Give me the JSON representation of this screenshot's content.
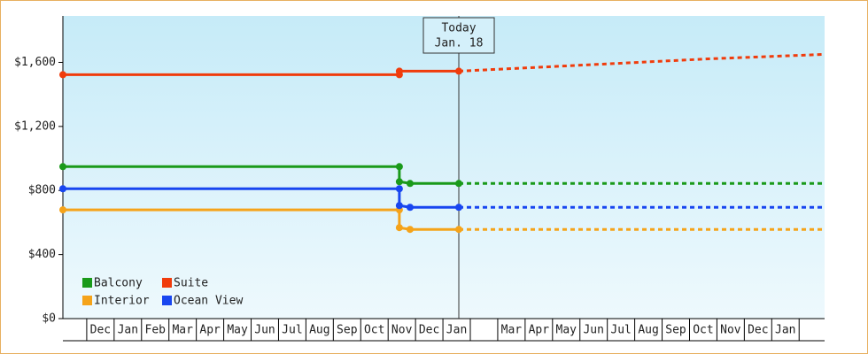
{
  "chart_data": {
    "type": "line",
    "step": true,
    "ylim": [
      0,
      1890
    ],
    "yticks": [
      {
        "value": 0,
        "label": "$0"
      },
      {
        "value": 400,
        "label": "$400"
      },
      {
        "value": 800,
        "label": "$800"
      },
      {
        "value": 1200,
        "label": "$1,200"
      },
      {
        "value": 1600,
        "label": "$1,600"
      }
    ],
    "xlim": [
      -0.87,
      26.93
    ],
    "xticks": [
      {
        "value": 0,
        "label": "Dec"
      },
      {
        "value": 1,
        "label": "Jan"
      },
      {
        "value": 2,
        "label": "Feb"
      },
      {
        "value": 3,
        "label": "Mar"
      },
      {
        "value": 4,
        "label": "Apr"
      },
      {
        "value": 5,
        "label": "May"
      },
      {
        "value": 6,
        "label": "Jun"
      },
      {
        "value": 7,
        "label": "Jul"
      },
      {
        "value": 8,
        "label": "Aug"
      },
      {
        "value": 9,
        "label": "Sep"
      },
      {
        "value": 10,
        "label": "Oct"
      },
      {
        "value": 11,
        "label": "Nov"
      },
      {
        "value": 12,
        "label": "Dec"
      },
      {
        "value": 13,
        "label": "Jan"
      },
      {
        "value": 14,
        "label": null
      },
      {
        "value": 15,
        "label": "Mar"
      },
      {
        "value": 16,
        "label": "Apr"
      },
      {
        "value": 17,
        "label": "May"
      },
      {
        "value": 18,
        "label": "Jun"
      },
      {
        "value": 19,
        "label": "Jul"
      },
      {
        "value": 20,
        "label": "Aug"
      },
      {
        "value": 21,
        "label": "Sep"
      },
      {
        "value": 22,
        "label": "Oct"
      },
      {
        "value": 23,
        "label": "Nov"
      },
      {
        "value": 24,
        "label": "Dec"
      },
      {
        "value": 25,
        "label": "Jan"
      },
      {
        "value": 26,
        "label": null
      }
    ],
    "today": {
      "x": 13.58,
      "label": [
        "Today",
        "Jan. 18"
      ]
    },
    "legend": "lower-left",
    "series": [
      {
        "name": "Balcony",
        "color": "#1a9a1a",
        "x": [
          -0.87,
          11.41,
          11.41,
          11.8,
          13.58,
          26.93
        ],
        "values": [
          949,
          949,
          855,
          844,
          844,
          844
        ]
      },
      {
        "name": "Suite",
        "color": "#f03c0c",
        "x": [
          -0.87,
          11.41,
          11.41,
          13.58,
          18.82,
          22.7,
          26.93
        ],
        "values": [
          1523,
          1523,
          1545,
          1545,
          1589,
          1622,
          1650
        ]
      },
      {
        "name": "Interior",
        "color": "#f5a31a",
        "x": [
          -0.87,
          11.41,
          11.41,
          11.8,
          13.58,
          26.93
        ],
        "values": [
          679,
          679,
          568,
          557,
          557,
          557
        ]
      },
      {
        "name": "Ocean View",
        "color": "#1846f0",
        "x": [
          -0.87,
          11.41,
          11.41,
          11.8,
          13.58,
          26.93
        ],
        "values": [
          811,
          811,
          706,
          695,
          695,
          695
        ]
      }
    ]
  }
}
